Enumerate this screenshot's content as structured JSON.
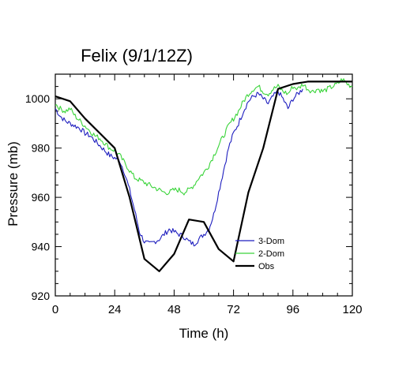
{
  "chart_data": {
    "type": "line",
    "title": "Felix (9/1/12Z)",
    "xlabel": "Time (h)",
    "ylabel": "Pressure (mb)",
    "xlim": [
      0,
      120
    ],
    "ylim": [
      920,
      1010
    ],
    "xticks": [
      0,
      24,
      48,
      72,
      96,
      120
    ],
    "yticks": [
      920,
      940,
      960,
      980,
      1000
    ],
    "grid": false,
    "legend_position": "lower-right",
    "series": [
      {
        "name": "3-Dom",
        "color": "#1f1fbf",
        "x": [
          0,
          2,
          4,
          6,
          8,
          10,
          12,
          14,
          16,
          18,
          20,
          22,
          24,
          26,
          28,
          30,
          32,
          34,
          36,
          38,
          40,
          42,
          44,
          46,
          48,
          50,
          52,
          54,
          56,
          58,
          60,
          62,
          64,
          66,
          68,
          70,
          72,
          74,
          76,
          78,
          80,
          82,
          84,
          86,
          88,
          90,
          92,
          94,
          96,
          98,
          100
        ],
        "y": [
          996,
          993,
          991,
          990,
          989,
          988,
          986,
          985,
          983,
          981,
          979,
          977,
          976,
          975,
          970,
          963,
          955,
          946,
          942,
          941,
          942,
          943,
          945,
          947,
          946,
          945,
          944,
          942,
          941,
          943,
          945,
          947,
          953,
          962,
          971,
          980,
          986,
          990,
          995,
          999,
          1001,
          1002,
          1000,
          998,
          1001,
          1003,
          1000,
          996,
          1000,
          1002,
          1004
        ]
      },
      {
        "name": "2-Dom",
        "color": "#3ad43a",
        "x": [
          0,
          2,
          4,
          6,
          8,
          10,
          12,
          14,
          16,
          18,
          20,
          22,
          24,
          26,
          28,
          30,
          32,
          34,
          36,
          38,
          40,
          42,
          44,
          46,
          48,
          50,
          52,
          54,
          56,
          58,
          60,
          62,
          64,
          66,
          68,
          70,
          72,
          74,
          76,
          78,
          80,
          82,
          84,
          86,
          88,
          90,
          92,
          94,
          96,
          98,
          100,
          102,
          104,
          106,
          108,
          110,
          112,
          114,
          116,
          118,
          120
        ],
        "y": [
          998,
          996,
          995,
          996,
          993,
          991,
          989,
          987,
          985,
          984,
          982,
          980,
          979,
          977,
          974,
          971,
          968,
          967,
          966,
          965,
          964,
          963,
          962,
          962,
          963,
          963,
          962,
          963,
          965,
          968,
          970,
          973,
          977,
          981,
          985,
          989,
          992,
          995,
          999,
          1002,
          1004,
          1005,
          1003,
          1002,
          1004,
          1005,
          1003,
          1002,
          1005,
          1004,
          1006,
          1004,
          1003,
          1004,
          1003,
          1004,
          1005,
          1006,
          1008,
          1006,
          1005
        ]
      },
      {
        "name": "Obs",
        "color": "#000000",
        "x": [
          0,
          6,
          12,
          18,
          24,
          30,
          36,
          42,
          48,
          54,
          60,
          66,
          72,
          78,
          84,
          90,
          96,
          102,
          108,
          114,
          120
        ],
        "y": [
          1001,
          999,
          992,
          986,
          980,
          960,
          935,
          930,
          937,
          951,
          950,
          939,
          934,
          962,
          980,
          1004,
          1006,
          1007,
          1007,
          1007,
          1007
        ]
      }
    ]
  }
}
